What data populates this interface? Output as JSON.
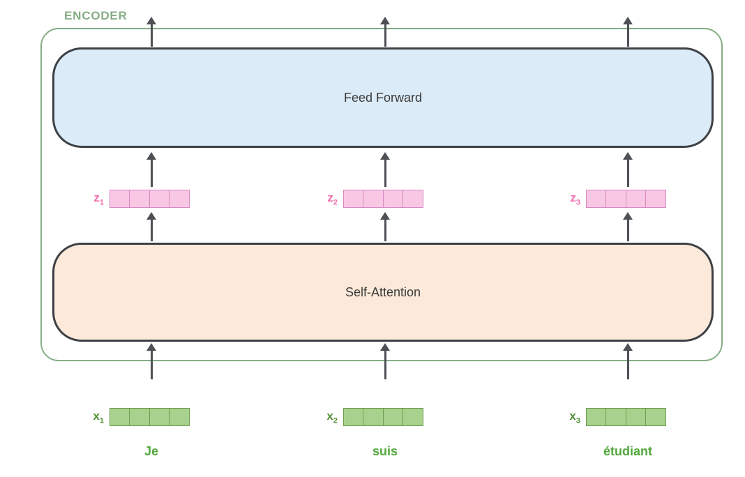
{
  "labels": {
    "encoder": "ENCODER",
    "feed_forward": "Feed Forward",
    "self_attention": "Self-Attention"
  },
  "columns": [
    {
      "z": {
        "base": "z",
        "sub": "1"
      },
      "x": {
        "base": "x",
        "sub": "1"
      },
      "token": "Je"
    },
    {
      "z": {
        "base": "z",
        "sub": "2"
      },
      "x": {
        "base": "x",
        "sub": "2"
      },
      "token": "suis"
    },
    {
      "z": {
        "base": "z",
        "sub": "3"
      },
      "x": {
        "base": "x",
        "sub": "3"
      },
      "token": "étudiant"
    }
  ],
  "vector_cell_count": 4,
  "colors": {
    "encoder_green": "#84ad84",
    "box_border": "#3d4045",
    "panel_text": "#3a3a3a",
    "feed_forward_fill": "#dcebf8",
    "self_attention_fill": "#fce9d9",
    "z_fill": "#f8c7e3",
    "z_border": "#d887bf",
    "z_label": "#f06eae",
    "x_fill": "#a9d18e",
    "x_border": "#6d9e4f",
    "x_label": "#4f8f33",
    "token_green": "#52a83b",
    "arrow": "#4d5054"
  }
}
